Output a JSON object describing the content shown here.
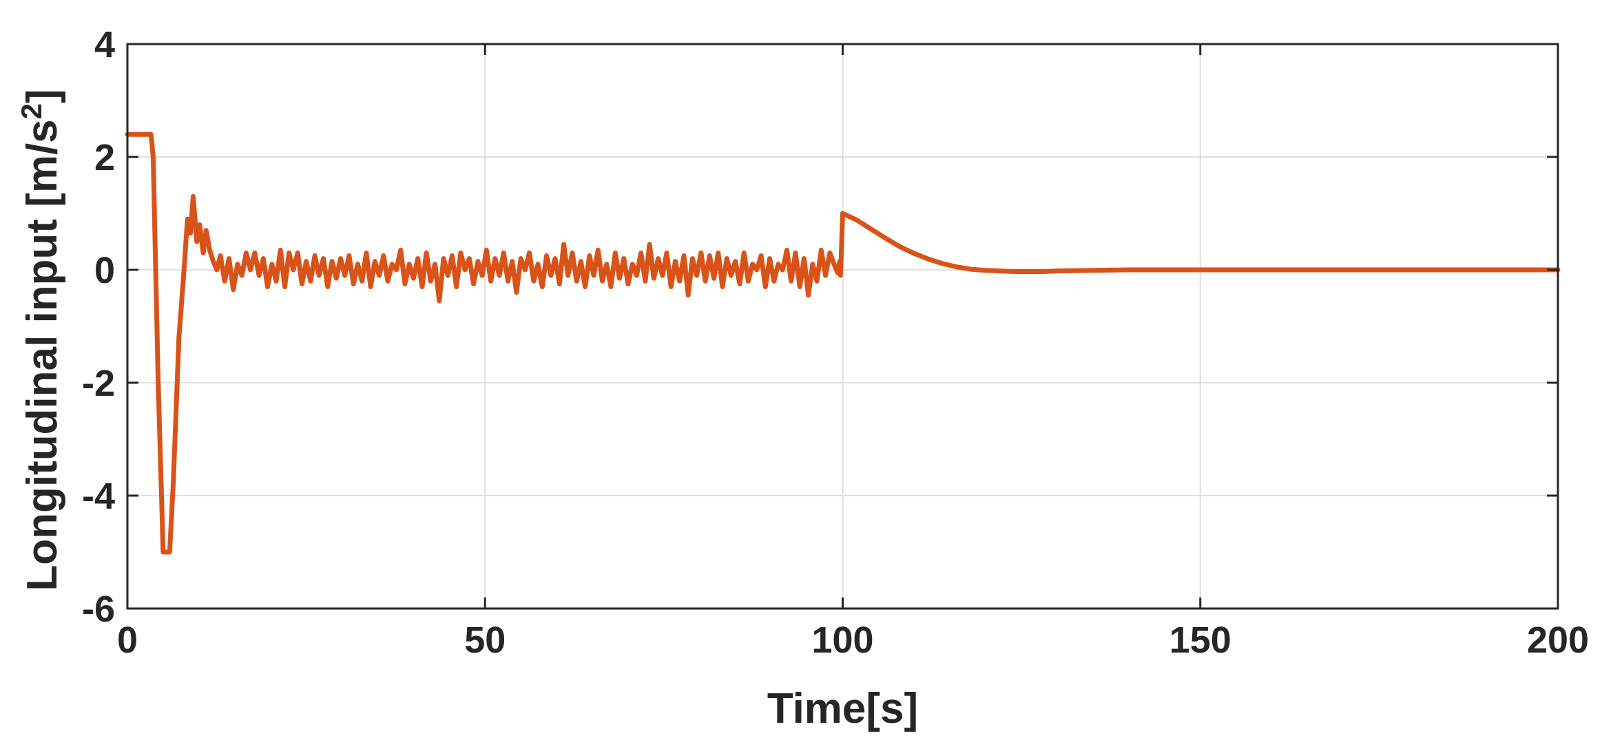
{
  "chart_data": {
    "type": "line",
    "xlabel": "Time[s]",
    "ylabel_main": "Longitudinal input [m/s",
    "ylabel_sup": "2",
    "ylabel_end": "]",
    "xlim": [
      0,
      200
    ],
    "ylim": [
      -6,
      4
    ],
    "x_ticks": [
      0,
      50,
      100,
      150,
      200
    ],
    "y_ticks": [
      -6,
      -4,
      -2,
      0,
      2,
      4
    ],
    "x_tick_labels": [
      "0",
      "50",
      "100",
      "150",
      "200"
    ],
    "y_tick_labels": [
      "-6",
      "-4",
      "-2",
      "0",
      "2",
      "4"
    ],
    "grid": true,
    "series": [
      {
        "color": "#d95319",
        "x": [
          0,
          3.3,
          3.6,
          4.3,
          5.0,
          5.4,
          5.9,
          6.4,
          7.2,
          7.8,
          8.4,
          8.8,
          9.2,
          9.7,
          10.1,
          10.6,
          11.0,
          11.5,
          12.0,
          12.5,
          13.0,
          13.6,
          14.2,
          14.8,
          15.4,
          16.0,
          16.6,
          17.2,
          17.8,
          18.4,
          19.0,
          19.6,
          20.2,
          20.8,
          21.4,
          22.0,
          22.6,
          23.2,
          23.8,
          24.4,
          25.0,
          25.6,
          26.2,
          26.8,
          27.4,
          28.0,
          28.6,
          29.2,
          29.8,
          30.4,
          31.0,
          31.6,
          32.2,
          32.8,
          33.4,
          34.0,
          34.6,
          35.2,
          35.8,
          36.4,
          37.0,
          37.6,
          38.2,
          38.8,
          39.4,
          40.0,
          40.6,
          41.2,
          41.8,
          42.4,
          43.0,
          43.6,
          44.2,
          44.8,
          45.4,
          46.0,
          46.6,
          47.2,
          47.8,
          48.4,
          49.0,
          49.6,
          50.2,
          50.8,
          51.4,
          52.0,
          52.6,
          53.2,
          53.8,
          54.4,
          55.0,
          55.6,
          56.2,
          56.8,
          57.4,
          58.0,
          58.6,
          59.2,
          59.8,
          60.4,
          61.0,
          61.6,
          62.2,
          62.8,
          63.4,
          64.0,
          64.6,
          65.2,
          65.8,
          66.4,
          67.0,
          67.6,
          68.2,
          68.8,
          69.4,
          70.0,
          70.6,
          71.2,
          71.8,
          72.4,
          73.0,
          73.6,
          74.2,
          74.8,
          75.4,
          76.0,
          76.6,
          77.2,
          77.8,
          78.4,
          79.0,
          79.6,
          80.2,
          80.8,
          81.4,
          82.0,
          82.6,
          83.2,
          83.8,
          84.4,
          85.0,
          85.6,
          86.2,
          86.8,
          87.4,
          88.0,
          88.6,
          89.2,
          89.8,
          90.4,
          91.0,
          91.6,
          92.2,
          92.8,
          93.4,
          94.0,
          94.6,
          95.2,
          95.8,
          96.4,
          97.0,
          97.6,
          98.2,
          98.8,
          99.3,
          99.6,
          99.7,
          100.0,
          102.0,
          104.0,
          106.0,
          108.0,
          110.0,
          112.0,
          114.0,
          116.0,
          118.0,
          120.0,
          122.0,
          124.0,
          126.0,
          128.0,
          130.0,
          135.0,
          140.0,
          150.0,
          160.0,
          170.0,
          180.0,
          190.0,
          200.0
        ],
        "y": [
          2.4,
          2.4,
          2.0,
          -2.0,
          -5.0,
          -5.0,
          -5.0,
          -3.8,
          -1.2,
          -0.2,
          0.9,
          0.65,
          1.3,
          0.5,
          0.8,
          0.3,
          0.7,
          0.35,
          0.15,
          0.0,
          0.25,
          -0.2,
          0.2,
          -0.35,
          0.1,
          -0.1,
          0.3,
          0.0,
          0.3,
          -0.1,
          0.2,
          -0.3,
          0.1,
          -0.2,
          0.35,
          -0.3,
          0.3,
          0.0,
          0.3,
          -0.25,
          0.15,
          -0.2,
          0.25,
          -0.1,
          0.2,
          -0.3,
          0.15,
          -0.15,
          0.2,
          -0.1,
          0.25,
          -0.25,
          0.1,
          -0.2,
          0.3,
          -0.3,
          0.15,
          -0.1,
          0.25,
          -0.2,
          0.1,
          0.0,
          0.35,
          -0.25,
          0.1,
          -0.15,
          0.2,
          -0.3,
          0.3,
          -0.2,
          0.1,
          -0.55,
          0.2,
          -0.1,
          0.25,
          -0.3,
          0.3,
          0.0,
          0.2,
          -0.25,
          0.15,
          -0.1,
          0.35,
          -0.2,
          0.2,
          -0.1,
          0.3,
          -0.2,
          0.15,
          -0.4,
          0.2,
          0.0,
          0.3,
          -0.2,
          0.1,
          -0.3,
          0.25,
          -0.1,
          0.2,
          -0.25,
          0.45,
          -0.1,
          0.3,
          -0.2,
          0.15,
          -0.3,
          0.25,
          -0.1,
          0.35,
          -0.2,
          0.1,
          -0.3,
          0.3,
          -0.15,
          0.2,
          -0.25,
          0.1,
          -0.1,
          0.3,
          -0.2,
          0.45,
          -0.15,
          0.2,
          -0.1,
          0.3,
          -0.3,
          0.15,
          -0.2,
          0.25,
          -0.45,
          0.2,
          -0.1,
          0.3,
          -0.2,
          0.25,
          -0.15,
          0.3,
          -0.3,
          0.2,
          -0.1,
          0.15,
          -0.25,
          0.3,
          -0.2,
          0.1,
          0.0,
          0.25,
          -0.3,
          0.2,
          -0.2,
          0.1,
          0.0,
          0.35,
          -0.2,
          0.3,
          -0.3,
          0.2,
          -0.45,
          0.1,
          -0.2,
          0.35,
          -0.1,
          0.3,
          0.1,
          -0.05,
          0.15,
          -0.1,
          1.0,
          0.88,
          0.72,
          0.56,
          0.41,
          0.29,
          0.19,
          0.11,
          0.05,
          0.01,
          -0.01,
          -0.02,
          -0.03,
          -0.03,
          -0.03,
          -0.02,
          -0.01,
          0.0,
          0.0,
          0.0,
          0.0,
          0.0,
          0.0,
          0.0
        ]
      }
    ]
  }
}
